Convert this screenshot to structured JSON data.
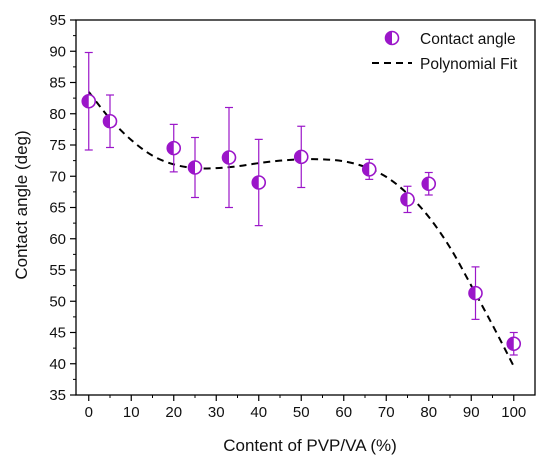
{
  "chart_data": {
    "type": "scatter",
    "title": "",
    "xlabel": "Content of PVP/VA (%)",
    "ylabel": "Contact angle (deg)",
    "xlim": [
      -3,
      105
    ],
    "ylim": [
      35,
      95
    ],
    "x_ticks": [
      0,
      10,
      20,
      30,
      40,
      50,
      60,
      70,
      80,
      90,
      100
    ],
    "y_ticks": [
      35,
      40,
      45,
      50,
      55,
      60,
      65,
      70,
      75,
      80,
      85,
      90,
      95
    ],
    "grid": false,
    "legend_position": "top-right",
    "series": [
      {
        "name": "Contact angle",
        "kind": "scatter-errorbar",
        "color": "#9b16c9",
        "marker": "half-filled-circle",
        "x": [
          0,
          5,
          20,
          25,
          33,
          40,
          50,
          66,
          75,
          80,
          91,
          100
        ],
        "y": [
          82.0,
          78.8,
          74.5,
          71.4,
          73.0,
          69.0,
          73.1,
          71.1,
          66.3,
          68.8,
          51.3,
          43.2
        ],
        "error": [
          7.8,
          4.2,
          3.8,
          4.8,
          8.0,
          6.9,
          4.9,
          1.6,
          2.1,
          1.8,
          4.2,
          1.8
        ]
      },
      {
        "name": "Polynomial Fit",
        "kind": "line",
        "color": "#000000",
        "line_style": "dashed",
        "x": [
          0,
          5,
          10,
          15,
          20,
          25,
          30,
          35,
          40,
          45,
          50,
          55,
          60,
          65,
          70,
          75,
          80,
          85,
          90,
          95,
          100
        ],
        "y": [
          83.5,
          79.2,
          75.8,
          73.3,
          71.9,
          71.3,
          71.3,
          71.6,
          72.1,
          72.5,
          72.7,
          72.7,
          72.4,
          71.5,
          69.9,
          67.2,
          63.5,
          58.6,
          52.5,
          46.2,
          39.6
        ]
      }
    ]
  }
}
